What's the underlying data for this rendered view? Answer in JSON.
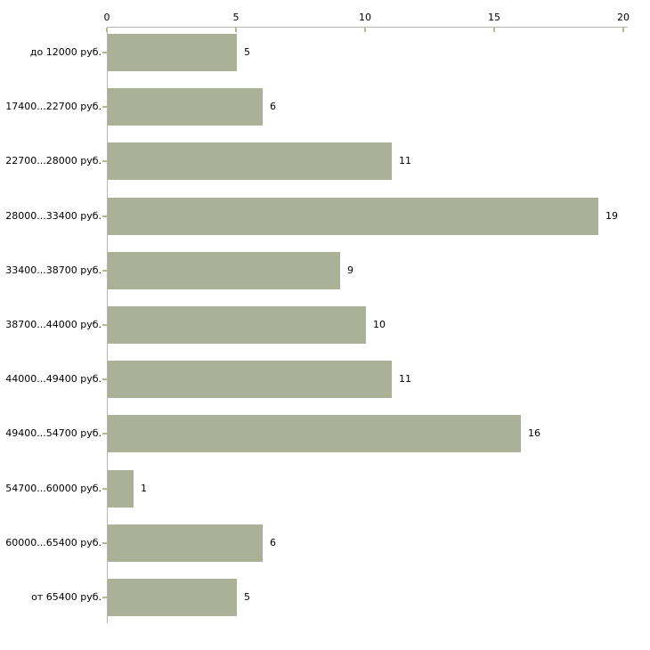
{
  "chart_data": {
    "type": "bar",
    "orientation": "horizontal",
    "title": "",
    "xlabel": "",
    "ylabel": "",
    "categories": [
      "до 12000 руб.",
      "17400...22700 руб.",
      "22700...28000 руб.",
      "28000...33400 руб.",
      "33400...38700 руб.",
      "38700...44000 руб.",
      "44000...49400 руб.",
      "49400...54700 руб.",
      "54700...60000 руб.",
      "60000...65400 руб.",
      "от 65400 руб."
    ],
    "values": [
      5,
      6,
      11,
      19,
      9,
      10,
      11,
      16,
      1,
      6,
      5
    ],
    "x_ticks": [
      0,
      5,
      10,
      15,
      20
    ],
    "xlim": [
      0,
      20
    ],
    "grid": false,
    "legend": null,
    "value_labels_shown": true,
    "x_axis_position": "top",
    "colors": {
      "bar": "#abb197",
      "axis": "#b9b4b1",
      "tick": "#b5ba8b",
      "text": "#000000",
      "background": "#ffffff"
    }
  }
}
